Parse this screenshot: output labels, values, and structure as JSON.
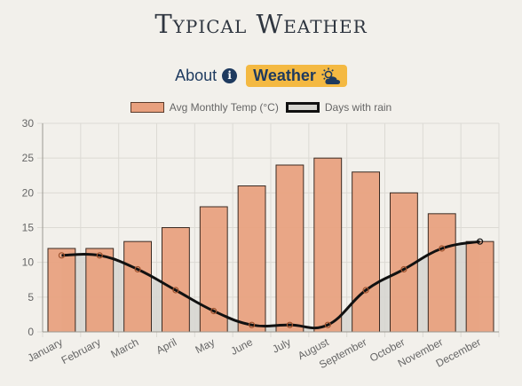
{
  "site": {
    "title": "Typical Weather"
  },
  "nav": {
    "about_label": "About",
    "weather_label": "Weather"
  },
  "icons": {
    "about": "info-icon",
    "weather": "sun-behind-cloud-icon"
  },
  "colors": {
    "temp_fill": "#e8a07e",
    "temp_stroke": "#3a2a22",
    "rain_fill": "#d6d5d0",
    "rain_line": "#111111",
    "rain_point": "#a0522d"
  },
  "chart_data": {
    "type": "bar",
    "categories": [
      "January",
      "February",
      "March",
      "April",
      "May",
      "June",
      "July",
      "August",
      "September",
      "October",
      "November",
      "December"
    ],
    "series": [
      {
        "name": "Avg Monthly Temp (°C)",
        "type": "bar",
        "values": [
          12,
          12,
          13,
          15,
          18,
          21,
          24,
          25,
          23,
          20,
          17,
          13
        ]
      },
      {
        "name": "Days with rain",
        "type": "area",
        "values": [
          11,
          11,
          9,
          6,
          3,
          1,
          1,
          1,
          6,
          9,
          12,
          13
        ]
      }
    ],
    "yticks": [
      0,
      5,
      10,
      15,
      20,
      25,
      30
    ],
    "ylim": [
      0,
      30
    ],
    "grid": true,
    "legend": "top-center"
  }
}
